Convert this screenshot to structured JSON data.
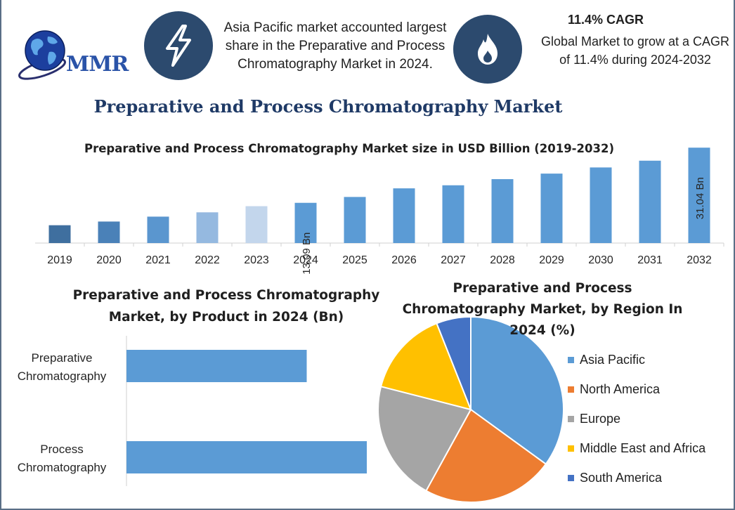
{
  "brand": {
    "logo_text": "MMR"
  },
  "info": {
    "highlight_text": "Asia Pacific market accounted largest share in the Preparative and Process Chromatography Market in 2024.",
    "cagr_title": "11.4% CAGR",
    "cagr_line1": "Global Market to grow at a CAGR",
    "cagr_line2": "of 11.4% during 2024-2032"
  },
  "page_title": "Preparative and Process Chromatography Market",
  "chart_data": [
    {
      "type": "bar",
      "title": "Preparative and Process Chromatography Market size in USD Billion (2019-2032)",
      "categories": [
        "2019",
        "2020",
        "2021",
        "2022",
        "2023",
        "2024",
        "2025",
        "2026",
        "2027",
        "2028",
        "2029",
        "2030",
        "2031",
        "2032"
      ],
      "values": [
        5.8,
        7.0,
        8.6,
        10.0,
        12.0,
        13.09,
        15.0,
        17.8,
        18.8,
        20.8,
        22.6,
        24.6,
        26.8,
        31.04
      ],
      "colors": [
        "#3f6f9f",
        "#4a81b8",
        "#5a96cf",
        "#95b9e0",
        "#c3d6ec",
        "#5b9bd5",
        "#5b9bd5",
        "#5b9bd5",
        "#5b9bd5",
        "#5b9bd5",
        "#5b9bd5",
        "#5b9bd5",
        "#5b9bd5",
        "#5b9bd5"
      ],
      "data_labels": {
        "2024": "13.09 Bn",
        "2032": "31.04 Bn"
      },
      "xlabel": "",
      "ylabel": "",
      "ylim": [
        0,
        32
      ]
    },
    {
      "type": "bar",
      "orientation": "horizontal",
      "title_line1": "Preparative and Process Chromatography",
      "title_line2": "Market, by Product in 2024 (Bn)",
      "categories": [
        {
          "line1": "Preparative",
          "line2": "Chromatography"
        },
        {
          "line1": "Process",
          "line2": "Chromatography"
        }
      ],
      "values": [
        5.7,
        7.6
      ],
      "xlim": [
        0,
        10
      ],
      "color": "#5b9bd5"
    },
    {
      "type": "pie",
      "title_line1": "Preparative and Process",
      "title_line2": "Chromatography Market, by Region In",
      "title_line3": "2024 (%)",
      "labels": [
        "Asia Pacific",
        "North America",
        "Europe",
        "Middle East and Africa",
        "South America"
      ],
      "values": [
        35,
        23,
        21,
        15,
        6
      ],
      "colors": [
        "#5b9bd5",
        "#ed7d31",
        "#a5a5a5",
        "#ffc000",
        "#4472c4"
      ],
      "legend_position": "right"
    }
  ]
}
